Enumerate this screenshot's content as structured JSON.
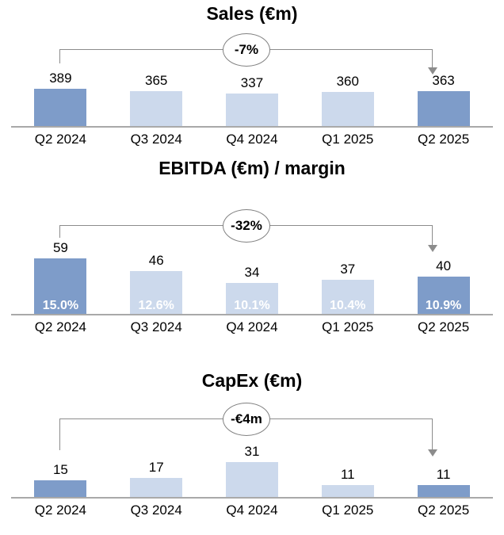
{
  "colors": {
    "bar_highlight": "#7E9CC9",
    "bar_regular": "#CCD9EC",
    "axis_line": "#A9A9A9",
    "bracket_line": "#8C8C8C",
    "margin_label_text": "#FFFFFF"
  },
  "chart_data": [
    {
      "type": "bar",
      "title": "Sales (€m)",
      "categories": [
        "Q2 2024",
        "Q3 2024",
        "Q4 2024",
        "Q1 2025",
        "Q2 2025"
      ],
      "values": [
        389,
        365,
        337,
        360,
        363
      ],
      "annotation": "-7%",
      "annotation_span": [
        "Q2 2024",
        "Q2 2025"
      ],
      "highlight_indices": [
        0,
        4
      ],
      "legend": "none",
      "grid": false
    },
    {
      "type": "bar",
      "title": "EBITDA (€m) / margin",
      "categories": [
        "Q2 2024",
        "Q3 2024",
        "Q4 2024",
        "Q1 2025",
        "Q2 2025"
      ],
      "values": [
        59,
        46,
        34,
        37,
        40
      ],
      "margins": [
        "15.0%",
        "12.6%",
        "10.1%",
        "10.4%",
        "10.9%"
      ],
      "annotation": "-32%",
      "annotation_span": [
        "Q2 2024",
        "Q2 2025"
      ],
      "highlight_indices": [
        0,
        4
      ],
      "legend": "none",
      "grid": false
    },
    {
      "type": "bar",
      "title": "CapEx (€m)",
      "categories": [
        "Q2 2024",
        "Q3 2024",
        "Q4 2024",
        "Q1 2025",
        "Q2 2025"
      ],
      "values": [
        15,
        17,
        31,
        11,
        11
      ],
      "annotation": "-€4m",
      "annotation_span": [
        "Q2 2024",
        "Q2 2025"
      ],
      "highlight_indices": [
        0,
        4
      ],
      "legend": "none",
      "grid": false
    }
  ]
}
